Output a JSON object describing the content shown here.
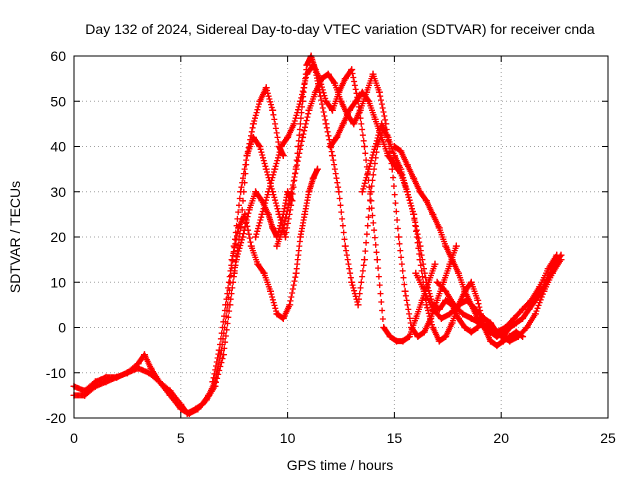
{
  "chart_data": {
    "type": "scatter",
    "title": "Day 132 of 2024, Sidereal Day-to-day VTEC variation (SDTVAR) for receiver cnda",
    "xlabel": "GPS time / hours",
    "ylabel": "SDTVAR / TECUs",
    "xlim": [
      0,
      25
    ],
    "ylim": [
      -20,
      60
    ],
    "xticks": [
      0,
      5,
      10,
      15,
      20,
      25
    ],
    "yticks": [
      -20,
      -10,
      0,
      10,
      20,
      30,
      40,
      50,
      60
    ],
    "xtick_labels": [
      "0",
      "5",
      "10",
      "15",
      "20",
      "25"
    ],
    "ytick_labels": [
      "-20",
      "-10",
      "0",
      "10",
      "20",
      "30",
      "40",
      "50",
      "60"
    ],
    "grid": true,
    "marker": "+",
    "marker_color": "#ff0000",
    "series": [
      {
        "name": "track-1",
        "x": [
          0.0,
          0.5,
          1.0,
          1.5,
          2.0,
          2.5,
          3.0,
          3.3,
          3.6,
          4.0,
          4.5,
          5.0,
          5.3,
          5.7,
          6.0,
          6.3,
          6.6,
          6.9,
          7.2,
          7.5,
          7.8,
          8.1,
          8.4,
          8.7,
          9.0,
          9.3,
          9.6,
          9.8
        ],
        "y": [
          -15,
          -15,
          -13,
          -12,
          -11,
          -10,
          -8,
          -6,
          -9,
          -12,
          -14,
          -17,
          -19,
          -18,
          -17,
          -15,
          -12,
          -5,
          5,
          18,
          30,
          38,
          45,
          50,
          53,
          48,
          40,
          38
        ]
      },
      {
        "name": "track-2",
        "x": [
          0.0,
          0.5,
          1.0,
          1.5,
          2.0,
          2.5,
          3.0,
          3.5,
          4.0,
          4.5,
          5.0,
          5.4,
          5.8,
          6.2,
          6.6,
          7.0,
          7.3,
          7.6,
          7.9,
          8.2,
          8.5,
          8.8,
          9.1,
          9.3,
          9.5,
          9.8,
          10.0,
          10.2
        ],
        "y": [
          -13,
          -14,
          -12,
          -11,
          -11,
          -10,
          -9,
          -10,
          -12,
          -15,
          -18,
          -19,
          -18,
          -16,
          -13,
          -6,
          5,
          15,
          20,
          26,
          30,
          28,
          25,
          22,
          20,
          25,
          30,
          28
        ]
      },
      {
        "name": "track-3",
        "x": [
          6.5,
          6.8,
          7.1,
          7.4,
          7.7,
          8.0,
          8.3,
          8.6,
          8.9,
          9.2,
          9.5,
          9.8,
          10.1,
          10.4,
          10.6,
          10.8,
          11.0,
          11.2,
          11.4
        ],
        "y": [
          -12,
          -5,
          5,
          15,
          22,
          25,
          18,
          14,
          12,
          8,
          3,
          2,
          5,
          12,
          20,
          25,
          30,
          33,
          35
        ]
      },
      {
        "name": "track-4",
        "x": [
          7.5,
          7.8,
          8.1,
          8.4,
          8.7,
          9.0,
          9.3,
          9.6,
          9.9,
          10.2,
          10.5,
          10.7,
          10.9,
          11.1,
          11.3,
          11.5,
          11.8,
          12.1,
          12.4,
          12.7,
          13.0,
          13.3,
          13.6,
          13.9,
          14.2,
          14.5
        ],
        "y": [
          12,
          22,
          38,
          42,
          40,
          35,
          30,
          25,
          20,
          28,
          40,
          50,
          58,
          60,
          57,
          52,
          45,
          38,
          30,
          18,
          10,
          5,
          15,
          30,
          40,
          44
        ]
      },
      {
        "name": "track-5",
        "x": [
          8.5,
          8.8,
          9.1,
          9.4,
          9.7,
          10.0,
          10.3,
          10.6,
          10.9,
          11.2,
          11.5,
          11.8,
          12.1,
          12.4,
          12.7,
          13.0,
          13.3,
          13.6,
          13.9,
          14.2,
          14.5,
          14.8,
          15.1,
          15.4,
          15.7,
          16.0,
          16.3,
          16.6,
          16.9
        ],
        "y": [
          20,
          25,
          30,
          35,
          40,
          42,
          45,
          50,
          56,
          58,
          55,
          50,
          48,
          52,
          55,
          57,
          50,
          40,
          28,
          15,
          0,
          -2,
          -3,
          -3,
          -2,
          2,
          6,
          10,
          14
        ]
      },
      {
        "name": "track-6",
        "x": [
          9.5,
          9.8,
          10.1,
          10.4,
          10.7,
          11.0,
          11.3,
          11.6,
          11.9,
          12.2,
          12.5,
          12.8,
          13.1,
          13.4,
          13.7,
          14.0,
          14.3,
          14.6,
          14.9,
          15.2,
          15.5,
          15.8,
          16.1,
          16.4,
          16.7,
          17.0,
          17.3,
          17.6,
          17.9
        ],
        "y": [
          18,
          22,
          28,
          35,
          42,
          48,
          52,
          55,
          56,
          54,
          50,
          47,
          45,
          48,
          52,
          56,
          52,
          45,
          35,
          20,
          8,
          0,
          -2,
          -1,
          2,
          6,
          10,
          14,
          18
        ]
      },
      {
        "name": "track-7",
        "x": [
          12.0,
          12.3,
          12.6,
          12.9,
          13.2,
          13.5,
          13.8,
          14.1,
          14.4,
          14.7,
          15.0,
          15.3,
          15.6,
          15.9,
          16.2,
          16.5,
          16.8,
          17.1,
          17.4,
          17.7,
          18.0,
          18.3,
          18.6,
          18.9,
          19.2,
          19.5,
          19.8,
          20.1,
          20.4,
          20.7
        ],
        "y": [
          40,
          42,
          45,
          48,
          50,
          52,
          50,
          46,
          42,
          38,
          36,
          34,
          30,
          25,
          18,
          10,
          5,
          4,
          6,
          5,
          2,
          0,
          -1,
          0,
          2,
          1,
          -1,
          -2,
          0,
          1
        ]
      },
      {
        "name": "track-8",
        "x": [
          13.5,
          13.8,
          14.1,
          14.4,
          14.7,
          15.0,
          15.3,
          15.6,
          15.9,
          16.2,
          16.5,
          16.8,
          17.1,
          17.4,
          17.7,
          18.0,
          18.3,
          18.6,
          18.9,
          19.2,
          19.5,
          19.8,
          20.1,
          20.4,
          20.7,
          21.0
        ],
        "y": [
          30,
          35,
          40,
          45,
          42,
          38,
          35,
          30,
          25,
          15,
          5,
          0,
          -3,
          -2,
          1,
          5,
          8,
          10,
          6,
          0,
          -3,
          -4,
          -3,
          -2,
          -1,
          -2
        ]
      },
      {
        "name": "track-9",
        "x": [
          15.0,
          15.3,
          15.6,
          15.9,
          16.2,
          16.5,
          16.8,
          17.1,
          17.4,
          17.7,
          18.0,
          18.3,
          18.6,
          18.9,
          19.2,
          19.5,
          19.8,
          20.1,
          20.4,
          20.7,
          21.0,
          21.3,
          21.6,
          21.9,
          22.2,
          22.5,
          22.8
        ],
        "y": [
          40,
          39,
          36,
          33,
          30,
          28,
          25,
          22,
          18,
          15,
          12,
          8,
          5,
          2,
          0,
          -1,
          -2,
          -1,
          0,
          1,
          2,
          4,
          6,
          8,
          11,
          14,
          16
        ]
      },
      {
        "name": "track-10",
        "x": [
          16.0,
          16.4,
          16.8,
          17.2,
          17.6,
          18.0,
          18.4,
          18.8,
          19.2,
          19.6,
          20.0,
          20.4,
          20.8,
          21.2,
          21.6,
          22.0,
          22.4,
          22.8
        ],
        "y": [
          12,
          8,
          4,
          2,
          3,
          5,
          6,
          4,
          2,
          0,
          -2,
          -3,
          -2,
          0,
          3,
          8,
          12,
          15
        ]
      },
      {
        "name": "track-11",
        "x": [
          17.0,
          17.4,
          17.8,
          18.2,
          18.6,
          19.0,
          19.4,
          19.8,
          20.2,
          20.6,
          21.0,
          21.4,
          21.8,
          22.2,
          22.6
        ],
        "y": [
          10,
          8,
          5,
          3,
          2,
          1,
          0,
          -1,
          0,
          2,
          4,
          6,
          9,
          13,
          16
        ]
      }
    ]
  }
}
